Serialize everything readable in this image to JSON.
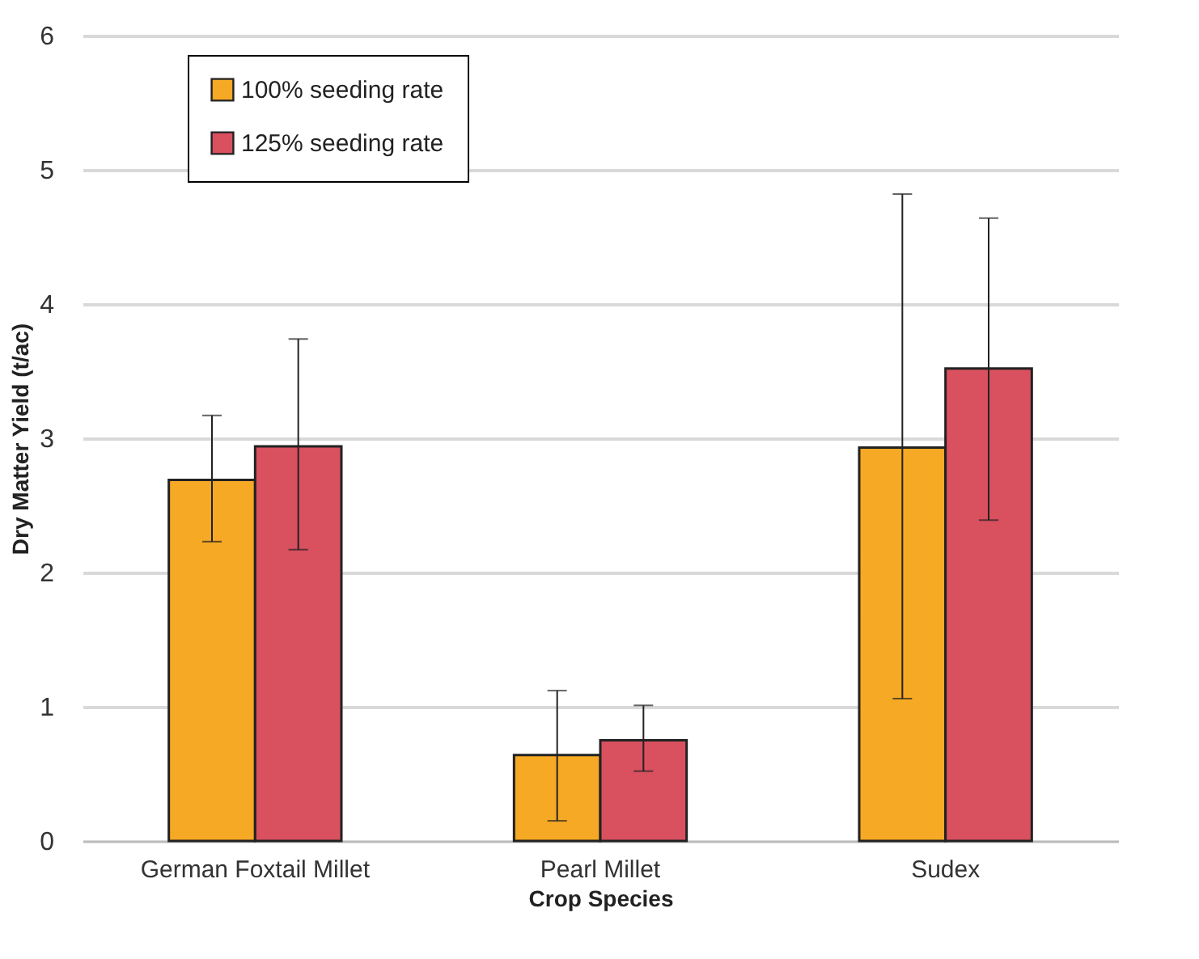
{
  "chart_data": {
    "type": "bar",
    "xlabel": "Crop Species",
    "ylabel": "Dry Matter Yield (t/ac)",
    "categories": [
      "German Foxtail Millet",
      "Pearl Millet",
      "Sudex"
    ],
    "series": [
      {
        "name": "100% seeding rate",
        "color": "#f6a924",
        "values": [
          2.69,
          0.64,
          2.93
        ],
        "errors": [
          [
            2.23,
            3.17
          ],
          [
            0.15,
            1.12
          ],
          [
            1.06,
            4.82
          ]
        ]
      },
      {
        "name": "125% seeding rate",
        "color": "#d9505f",
        "values": [
          2.94,
          0.75,
          3.52
        ],
        "errors": [
          [
            2.17,
            3.74
          ],
          [
            0.52,
            1.01
          ],
          [
            2.39,
            4.64
          ]
        ]
      }
    ],
    "ylim": [
      0,
      6
    ],
    "yticks": [
      0,
      1,
      2,
      3,
      4,
      5,
      6
    ],
    "grid": "y",
    "legend": "top left"
  }
}
